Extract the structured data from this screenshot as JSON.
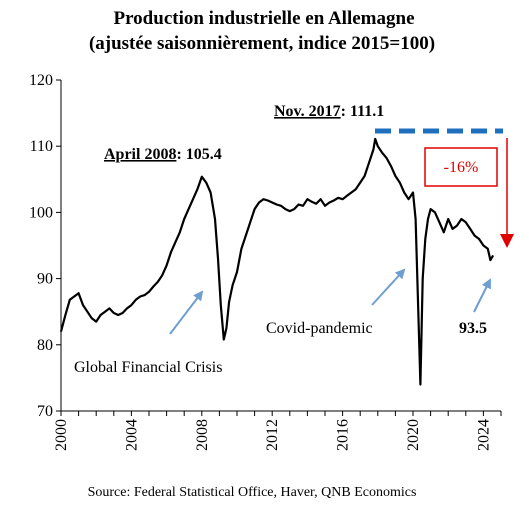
{
  "title_lines": [
    "Production industrielle en Allemagne",
    "(ajustée saisonnièrement, indice 2015=100)"
  ],
  "source": "Source: Federal Statistical Office, Haver, QNB Economics",
  "colors": {
    "series": "#000000",
    "peak_line": "#1f6fbf",
    "arrow_annot": "#6f9fd0",
    "decline": "#e00000"
  },
  "chart_data": {
    "type": "line",
    "title": "Production industrielle en Allemagne (ajustée saisonnièrement, indice 2015=100)",
    "xlabel": "",
    "ylabel": "",
    "xlim": [
      2000,
      2025
    ],
    "ylim": [
      70,
      120
    ],
    "x_ticks": [
      "2000",
      "2004",
      "2008",
      "2012",
      "2016",
      "2020",
      "2024"
    ],
    "y_ticks": [
      "70",
      "80",
      "90",
      "100",
      "110",
      "120"
    ],
    "grid": false,
    "legend": "none",
    "series": [
      {
        "name": "",
        "x": [
          2000.0,
          2000.25,
          2000.5,
          2000.75,
          2001.0,
          2001.25,
          2001.5,
          2001.75,
          2002.0,
          2002.25,
          2002.5,
          2002.75,
          2003.0,
          2003.25,
          2003.5,
          2003.75,
          2004.0,
          2004.25,
          2004.5,
          2004.75,
          2005.0,
          2005.25,
          2005.5,
          2005.75,
          2006.0,
          2006.25,
          2006.5,
          2006.75,
          2007.0,
          2007.25,
          2007.5,
          2007.75,
          2008.0,
          2008.25,
          2008.5,
          2008.75,
          2008.92,
          2009.08,
          2009.25,
          2009.4,
          2009.55,
          2009.75,
          2010.0,
          2010.25,
          2010.5,
          2010.75,
          2011.0,
          2011.25,
          2011.5,
          2011.75,
          2012.0,
          2012.25,
          2012.5,
          2012.75,
          2013.0,
          2013.25,
          2013.5,
          2013.75,
          2014.0,
          2014.25,
          2014.5,
          2014.75,
          2015.0,
          2015.25,
          2015.5,
          2015.75,
          2016.0,
          2016.25,
          2016.5,
          2016.75,
          2017.0,
          2017.25,
          2017.5,
          2017.75,
          2017.85,
          2018.0,
          2018.25,
          2018.5,
          2018.75,
          2019.0,
          2019.25,
          2019.5,
          2019.75,
          2020.0,
          2020.15,
          2020.3,
          2020.42,
          2020.55,
          2020.7,
          2020.85,
          2021.0,
          2021.25,
          2021.5,
          2021.75,
          2022.0,
          2022.25,
          2022.5,
          2022.75,
          2023.0,
          2023.25,
          2023.5,
          2023.75,
          2024.0,
          2024.25,
          2024.4,
          2024.55
        ],
        "values": [
          82.0,
          84.5,
          86.8,
          87.3,
          87.8,
          86.0,
          85.0,
          84.0,
          83.5,
          84.5,
          85.0,
          85.5,
          84.8,
          84.5,
          84.8,
          85.5,
          86.0,
          86.8,
          87.3,
          87.5,
          88.0,
          88.8,
          89.5,
          90.5,
          92.0,
          94.0,
          95.5,
          97.0,
          99.0,
          100.5,
          102.0,
          103.5,
          105.4,
          104.5,
          103.0,
          99.0,
          93.0,
          86.0,
          80.8,
          82.5,
          86.5,
          89.0,
          91.0,
          94.5,
          96.5,
          98.5,
          100.5,
          101.5,
          102.0,
          101.8,
          101.5,
          101.2,
          101.0,
          100.5,
          100.2,
          100.5,
          101.2,
          101.0,
          102.0,
          101.6,
          101.3,
          102.0,
          101.0,
          101.5,
          101.8,
          102.2,
          102.0,
          102.5,
          103.0,
          103.5,
          104.5,
          105.5,
          107.5,
          109.5,
          111.1,
          110.0,
          109.0,
          108.2,
          107.0,
          105.5,
          104.5,
          103.0,
          102.0,
          103.0,
          99.0,
          85.0,
          74.0,
          90.0,
          96.0,
          99.0,
          100.5,
          100.0,
          98.5,
          97.0,
          99.0,
          97.5,
          98.0,
          99.0,
          98.5,
          97.5,
          96.5,
          96.0,
          95.0,
          94.5,
          92.8,
          93.5
        ]
      }
    ],
    "annotations": {
      "peak_2008_date": "April 2008",
      "peak_2008_value": ": 105.4",
      "peak_2017_date": "Nov. 2017",
      "peak_2017_value": ": 111.1",
      "decline": "-16%",
      "gfc": "Global Financial Crisis",
      "covid": "Covid-pandemic",
      "last_value": "93.5"
    }
  }
}
